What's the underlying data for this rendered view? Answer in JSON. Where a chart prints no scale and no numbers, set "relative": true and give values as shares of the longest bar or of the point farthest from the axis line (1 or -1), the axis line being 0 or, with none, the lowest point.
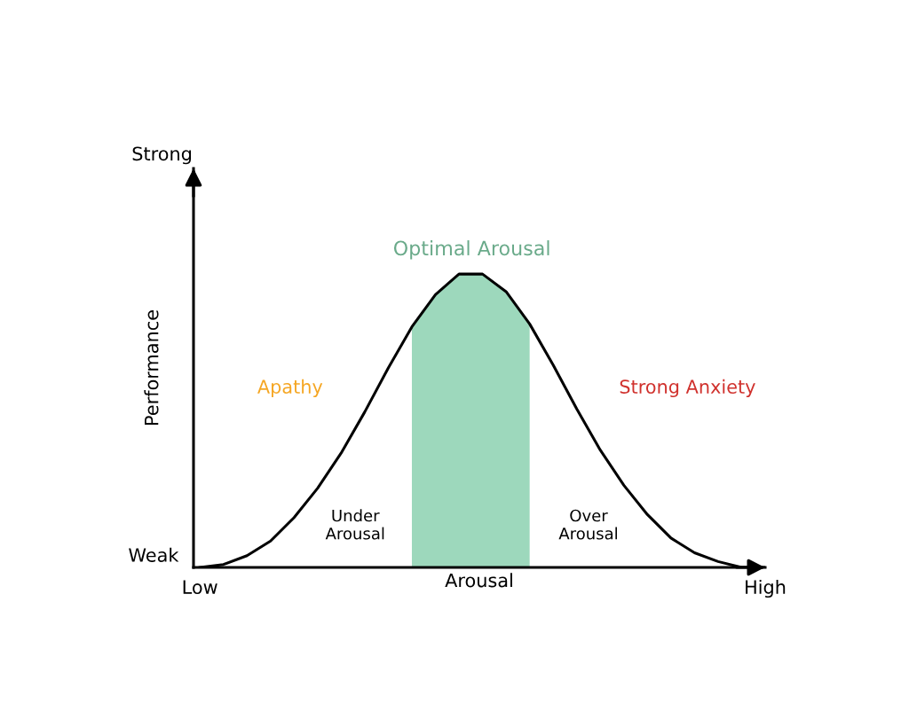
{
  "chart_data": {
    "type": "line",
    "relative": true,
    "xlabel": "Arousal",
    "ylabel": "Performance",
    "categories": [
      "Low",
      null,
      null,
      null,
      null,
      null,
      null,
      null,
      null,
      null,
      null,
      null,
      null,
      null,
      null,
      null,
      null,
      null,
      null,
      null,
      null,
      null,
      null,
      null,
      "High"
    ],
    "series": [
      {
        "type": "area",
        "color": "#9dd8bc",
        "values": [
          null,
          null,
          null,
          null,
          null,
          null,
          null,
          null,
          null,
          0.82,
          0.93,
          1.0,
          1.0,
          0.94,
          0.83,
          null,
          null,
          null,
          null,
          null,
          null,
          null,
          null,
          null,
          null
        ]
      },
      {
        "color": "#000000",
        "values": [
          0,
          0.01,
          0.04,
          0.09,
          0.17,
          0.27,
          0.39,
          0.53,
          0.68,
          0.82,
          0.93,
          1.0,
          1.0,
          0.94,
          0.83,
          0.69,
          0.54,
          0.4,
          0.28,
          0.18,
          0.1,
          0.05,
          0.02,
          0,
          0
        ]
      }
    ],
    "annotations": [
      "Strong",
      "Weak",
      "Optimal Arousal",
      "Apathy",
      "Strong Anxiety",
      "Under\nArousal",
      "Over\nArousal"
    ],
    "grid": false,
    "legend": false,
    "marker": "none",
    "line_style": "solid"
  }
}
